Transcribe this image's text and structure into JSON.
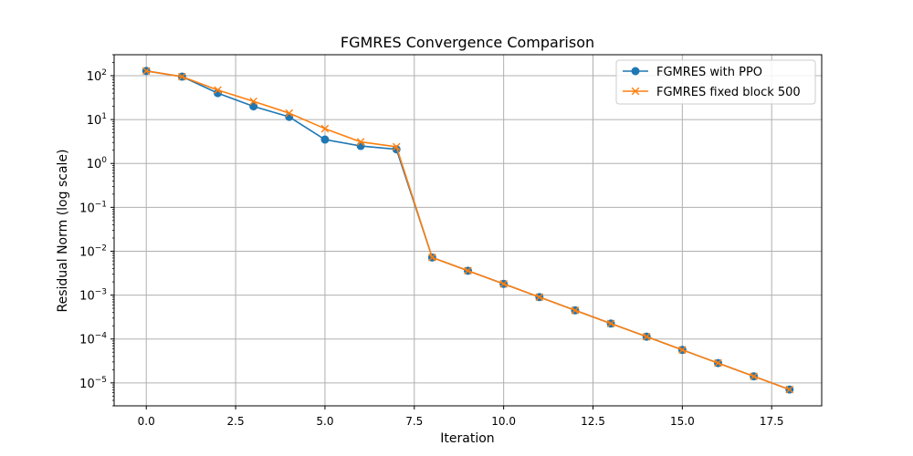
{
  "chart_data": {
    "type": "line",
    "title": "FGMRES Convergence Comparison",
    "xlabel": "Iteration",
    "ylabel": "Residual Norm (log scale)",
    "xlim": [
      -0.9,
      18.9
    ],
    "ylim": [
      3e-06,
      300
    ],
    "yscale": "log",
    "grid": true,
    "legend_position": "top-right",
    "x_ticks": [
      {
        "value": 0,
        "label": "0.0"
      },
      {
        "value": 2.5,
        "label": "2.5"
      },
      {
        "value": 5,
        "label": "5.0"
      },
      {
        "value": 7.5,
        "label": "7.5"
      },
      {
        "value": 10,
        "label": "10.0"
      },
      {
        "value": 12.5,
        "label": "12.5"
      },
      {
        "value": 15,
        "label": "15.0"
      },
      {
        "value": 17.5,
        "label": "17.5"
      }
    ],
    "y_ticks": [
      {
        "value": 100,
        "base": "10",
        "exp": "2"
      },
      {
        "value": 10,
        "base": "10",
        "exp": "1"
      },
      {
        "value": 1,
        "base": "10",
        "exp": "0"
      },
      {
        "value": 0.1,
        "base": "10",
        "exp": "−1"
      },
      {
        "value": 0.01,
        "base": "10",
        "exp": "−2"
      },
      {
        "value": 0.001,
        "base": "10",
        "exp": "−3"
      },
      {
        "value": 0.0001,
        "base": "10",
        "exp": "−4"
      },
      {
        "value": 1e-05,
        "base": "10",
        "exp": "−5"
      }
    ],
    "series": [
      {
        "name": "FGMRES with PPO",
        "color": "#1f77b4",
        "marker": "circle",
        "x": [
          0,
          1,
          2,
          3,
          4,
          5,
          6,
          7,
          8,
          9,
          10,
          11,
          12,
          13,
          14,
          15,
          16,
          17,
          18
        ],
        "values": [
          128,
          95,
          40,
          20,
          11.5,
          3.5,
          2.5,
          2.1,
          0.0072,
          0.0036,
          0.0018,
          0.0009,
          0.00045,
          0.000225,
          0.000113,
          5.65e-05,
          2.83e-05,
          1.41e-05,
          7.06e-06
        ]
      },
      {
        "name": "FGMRES fixed block 500",
        "color": "#ff7f0e",
        "marker": "x",
        "x": [
          0,
          1,
          2,
          3,
          4,
          5,
          6,
          7,
          8,
          9,
          10,
          11,
          12,
          13,
          14,
          15,
          16,
          17,
          18
        ],
        "values": [
          128,
          95,
          47,
          26,
          14,
          6.2,
          3.1,
          2.4,
          0.0072,
          0.0036,
          0.0018,
          0.0009,
          0.00045,
          0.000225,
          0.000113,
          5.65e-05,
          2.83e-05,
          1.41e-05,
          7.06e-06
        ]
      }
    ]
  }
}
